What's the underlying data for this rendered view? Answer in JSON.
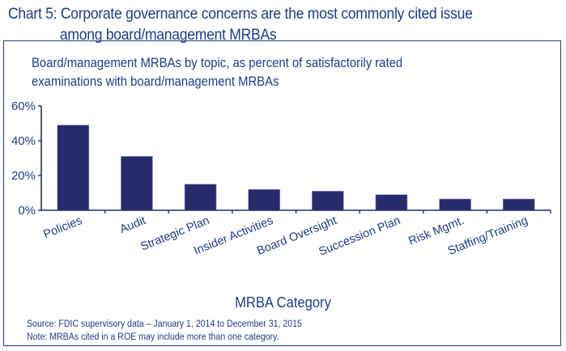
{
  "title_line1": "Chart 5: Corporate governance concerns are the most commonly cited issue",
  "title_line2": "among board/management MRBAs",
  "subtitle_line1": "Board/management MRBAs by topic, as percent of satisfactorily rated",
  "subtitle_line2": "examinations with board/management MRBAs",
  "source_line1": "Source: FDIC supervisory data – January 1, 2014 to December 31, 2015",
  "source_line2": "Note: MRBAs cited in a ROE may include more than one category.",
  "colors": {
    "bar": "#272b6e",
    "axis": "#272b6e",
    "text": "#1f3b8a"
  },
  "chart_data": {
    "type": "bar",
    "title": "Chart 5: Corporate governance concerns are the most commonly cited issue among board/management MRBAs",
    "subtitle": "Board/management MRBAs by topic, as percent of satisfactorily rated examinations with board/management MRBAs",
    "xlabel": "MRBA Category",
    "ylabel": "",
    "categories": [
      "Policies",
      "Audit",
      "Strategic Plan",
      "Insider Activities",
      "Board Oversight",
      "Succession Plan",
      "Risk Mgmt.",
      "Staffing/Training"
    ],
    "values": [
      49,
      31,
      15,
      12,
      11,
      9,
      6.5,
      6.5
    ],
    "ylim": [
      0,
      60
    ],
    "yticks": [
      0,
      20,
      40,
      60
    ],
    "ytick_labels": [
      "0%",
      "20%",
      "40%",
      "60%"
    ],
    "grid": false,
    "legend": "none",
    "x_label_rotation": "diagonal"
  }
}
